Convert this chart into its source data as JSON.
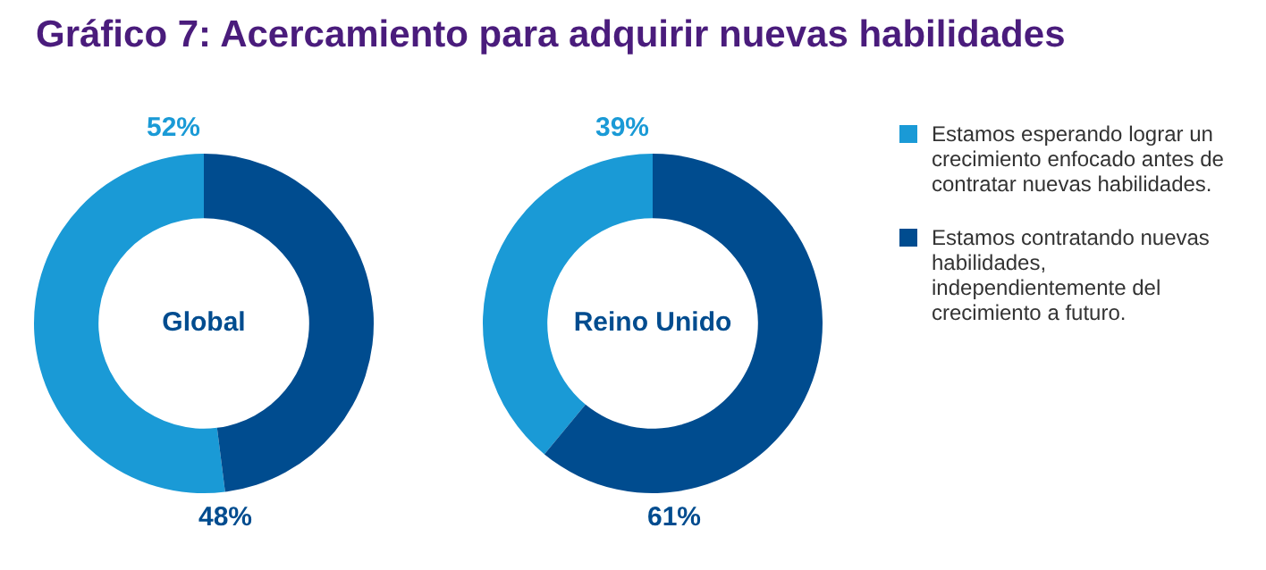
{
  "chart_data": [
    {
      "type": "donut",
      "title": "Gráfico 7: Acercamiento para adquirir nuevas habilidades",
      "categories": [
        "Estamos esperando lograr un crecimiento enfocado antes de contratar nuevas habilidades.",
        "Estamos contratando nuevas habilidades, independientemente del crecimiento a futuro."
      ],
      "values": [
        52,
        48
      ],
      "colors": [
        "#1a9ad6",
        "#004c8f"
      ],
      "value_labels": [
        "52%",
        "48%"
      ],
      "annotations": [
        "Global"
      ],
      "legend": "right"
    },
    {
      "type": "donut",
      "categories": [
        null,
        null
      ],
      "values": [
        39,
        61
      ],
      "colors": [
        "#1a9ad6",
        "#004c8f"
      ],
      "value_labels": [
        "39%",
        "61%"
      ],
      "annotations": [
        "Reino Unido"
      ],
      "legend": false
    }
  ]
}
